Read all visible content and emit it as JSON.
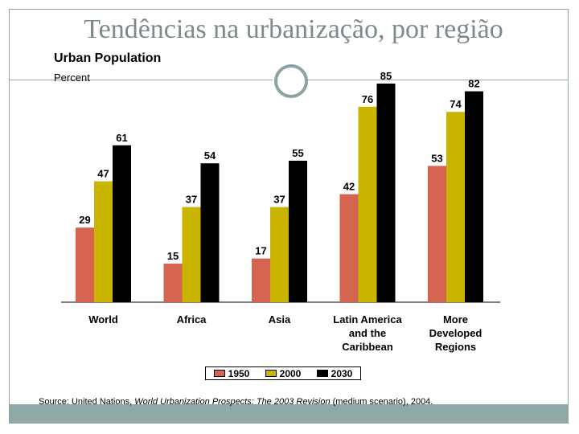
{
  "slide": {
    "title": "Tendências na urbanização, por região"
  },
  "source": {
    "prefix": "Source: United Nations, ",
    "publication": "World Urbanization Prospects: The 2003 Revision",
    "suffix": " (medium scenario), 2004."
  },
  "colors": {
    "1950": "#d4644f",
    "2000": "#c9b400",
    "2030": "#000000"
  },
  "chart_data": {
    "type": "bar",
    "title": "Urban Population",
    "ylabel": "Percent",
    "categories": [
      "World",
      "Africa",
      "Asia",
      "Latin America\nand the\nCaribbean",
      "More\nDeveloped\nRegions"
    ],
    "series": [
      {
        "name": "1950",
        "values": [
          29,
          15,
          17,
          42,
          53
        ]
      },
      {
        "name": "2000",
        "values": [
          47,
          37,
          37,
          76,
          74
        ]
      },
      {
        "name": "2030",
        "values": [
          61,
          54,
          55,
          85,
          82
        ]
      }
    ],
    "ylim": [
      0,
      100
    ],
    "grid": false,
    "legend": "bottom"
  }
}
